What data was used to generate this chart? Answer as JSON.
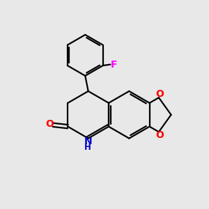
{
  "bg_color": "#e8e8e8",
  "bond_color": "#000000",
  "N_color": "#0000cc",
  "O_color": "#ff0000",
  "F_color": "#ff00ff",
  "line_width": 1.6,
  "figsize": [
    3.0,
    3.0
  ],
  "dpi": 100,
  "xlim": [
    0,
    10
  ],
  "ylim": [
    0,
    10
  ]
}
